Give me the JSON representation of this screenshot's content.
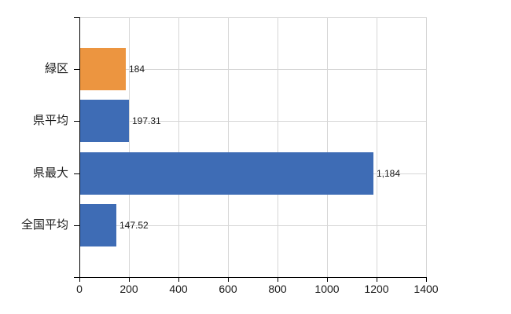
{
  "chart_data": {
    "type": "bar",
    "orientation": "horizontal",
    "title": "",
    "xlabel": "",
    "ylabel": "",
    "categories": [
      "緑区",
      "県平均",
      "県最大",
      "全国平均"
    ],
    "values": [
      184,
      197.31,
      1184,
      147.52
    ],
    "value_labels": [
      "184",
      "197.31",
      "1,184",
      "147.52"
    ],
    "bar_colors": [
      "#EC9540",
      "#3E6CB5",
      "#3E6CB5",
      "#3E6CB5"
    ],
    "xlim": [
      0,
      1400
    ],
    "x_ticks": [
      0,
      200,
      400,
      600,
      800,
      1000,
      1200,
      1400
    ],
    "grid": true,
    "legend": "none",
    "colors": {
      "background": "#FFFFFF",
      "axis": "#000000",
      "grid": "#D6D6D6",
      "text": "#1A1A1A",
      "bar_blue": "#3E6CB5",
      "bar_orange": "#EC9540"
    }
  }
}
